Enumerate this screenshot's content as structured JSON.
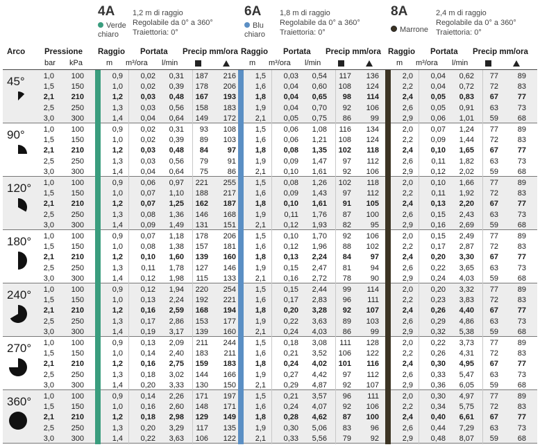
{
  "nozzles": [
    {
      "code": "4A",
      "color_name_1": "Verde",
      "color_name_2": "chiaro",
      "color": "#3a9d7e",
      "specs": [
        "1,2 m di raggio",
        "Regolabile da 0° a 360°",
        "Traiettoria: 0°"
      ]
    },
    {
      "code": "6A",
      "color_name_1": "Blu",
      "color_name_2": "chiaro",
      "color": "#5b8fc4",
      "specs": [
        "1,8 m di raggio",
        "Regolabile da 0° a 360°",
        "Traiettoria: 0°"
      ]
    },
    {
      "code": "8A",
      "color_name_1": "Marrone",
      "color_name_2": "",
      "color": "#3c3424",
      "specs": [
        "2,4 m di raggio",
        "Regolabile da 0° a 360°",
        "Traiettoria: 0°"
      ]
    }
  ],
  "headers": {
    "arco": "Arco",
    "pressione": "Pressione",
    "bar": "bar",
    "kpa": "kPa",
    "raggio": "Raggio",
    "portata": "Portata",
    "precip": "Precip mm/ora",
    "m": "m",
    "m3ora": "m³/ora",
    "lmin": "l/min"
  },
  "arcs": [
    {
      "label": "45°",
      "rows": [
        [
          "1,0",
          "100",
          "0,9",
          "0,02",
          "0,31",
          "187",
          "216",
          "1,5",
          "0,03",
          "0,54",
          "117",
          "136",
          "2,0",
          "0,04",
          "0,62",
          "77",
          "89"
        ],
        [
          "1,5",
          "150",
          "1,0",
          "0,02",
          "0,39",
          "178",
          "206",
          "1,6",
          "0,04",
          "0,60",
          "108",
          "124",
          "2,2",
          "0,04",
          "0,72",
          "72",
          "83"
        ],
        [
          "2,1",
          "210",
          "1,2",
          "0,03",
          "0,48",
          "167",
          "193",
          "1,8",
          "0,04",
          "0,65",
          "98",
          "114",
          "2,4",
          "0,05",
          "0,83",
          "67",
          "77"
        ],
        [
          "2,5",
          "250",
          "1,3",
          "0,03",
          "0,56",
          "158",
          "183",
          "1,9",
          "0,04",
          "0,70",
          "92",
          "106",
          "2,6",
          "0,05",
          "0,91",
          "63",
          "73"
        ],
        [
          "3,0",
          "300",
          "1,4",
          "0,04",
          "0,64",
          "149",
          "172",
          "2,1",
          "0,05",
          "0,75",
          "86",
          "99",
          "2,9",
          "0,06",
          "1,01",
          "59",
          "68"
        ]
      ]
    },
    {
      "label": "90°",
      "rows": [
        [
          "1,0",
          "100",
          "0,9",
          "0,02",
          "0,31",
          "93",
          "108",
          "1,5",
          "0,06",
          "1,08",
          "116",
          "134",
          "2,0",
          "0,07",
          "1,24",
          "77",
          "89"
        ],
        [
          "1,5",
          "150",
          "1,0",
          "0,02",
          "0,39",
          "89",
          "103",
          "1,6",
          "0,06",
          "1,21",
          "108",
          "124",
          "2,2",
          "0,09",
          "1,44",
          "72",
          "83"
        ],
        [
          "2,1",
          "210",
          "1,2",
          "0,03",
          "0,48",
          "84",
          "97",
          "1,8",
          "0,08",
          "1,35",
          "102",
          "118",
          "2,4",
          "0,10",
          "1,65",
          "67",
          "77"
        ],
        [
          "2,5",
          "250",
          "1,3",
          "0,03",
          "0,56",
          "79",
          "91",
          "1,9",
          "0,09",
          "1,47",
          "97",
          "112",
          "2,6",
          "0,11",
          "1,82",
          "63",
          "73"
        ],
        [
          "3,0",
          "300",
          "1,4",
          "0,04",
          "0,64",
          "75",
          "86",
          "2,1",
          "0,10",
          "1,61",
          "92",
          "106",
          "2,9",
          "0,12",
          "2,02",
          "59",
          "68"
        ]
      ]
    },
    {
      "label": "120°",
      "rows": [
        [
          "1,0",
          "100",
          "0,9",
          "0,06",
          "0,97",
          "221",
          "255",
          "1,5",
          "0,08",
          "1,26",
          "102",
          "118",
          "2,0",
          "0,10",
          "1,66",
          "77",
          "89"
        ],
        [
          "1,5",
          "150",
          "1,0",
          "0,07",
          "1,10",
          "188",
          "217",
          "1,6",
          "0,09",
          "1,43",
          "97",
          "112",
          "2,2",
          "0,11",
          "1,92",
          "72",
          "83"
        ],
        [
          "2,1",
          "210",
          "1,2",
          "0,07",
          "1,25",
          "162",
          "187",
          "1,8",
          "0,10",
          "1,61",
          "91",
          "105",
          "2,4",
          "0,13",
          "2,20",
          "67",
          "77"
        ],
        [
          "2,5",
          "250",
          "1,3",
          "0,08",
          "1,36",
          "146",
          "168",
          "1,9",
          "0,11",
          "1,76",
          "87",
          "100",
          "2,6",
          "0,15",
          "2,43",
          "63",
          "73"
        ],
        [
          "3,0",
          "300",
          "1,4",
          "0,09",
          "1,49",
          "131",
          "151",
          "2,1",
          "0,12",
          "1,93",
          "82",
          "95",
          "2,9",
          "0,16",
          "2,69",
          "59",
          "68"
        ]
      ]
    },
    {
      "label": "180°",
      "rows": [
        [
          "1,0",
          "100",
          "0,9",
          "0,07",
          "1,18",
          "178",
          "206",
          "1,5",
          "0,10",
          "1,70",
          "92",
          "106",
          "2,0",
          "0,15",
          "2,49",
          "77",
          "89"
        ],
        [
          "1,5",
          "150",
          "1,0",
          "0,08",
          "1,38",
          "157",
          "181",
          "1,6",
          "0,12",
          "1,96",
          "88",
          "102",
          "2,2",
          "0,17",
          "2,87",
          "72",
          "83"
        ],
        [
          "2,1",
          "210",
          "1,2",
          "0,10",
          "1,60",
          "139",
          "160",
          "1,8",
          "0,13",
          "2,24",
          "84",
          "97",
          "2,4",
          "0,20",
          "3,30",
          "67",
          "77"
        ],
        [
          "2,5",
          "250",
          "1,3",
          "0,11",
          "1,78",
          "127",
          "146",
          "1,9",
          "0,15",
          "2,47",
          "81",
          "94",
          "2,6",
          "0,22",
          "3,65",
          "63",
          "73"
        ],
        [
          "3,0",
          "300",
          "1,4",
          "0,12",
          "1,98",
          "115",
          "133",
          "2,1",
          "0,16",
          "2,72",
          "78",
          "90",
          "2,9",
          "0,24",
          "4,03",
          "59",
          "68"
        ]
      ]
    },
    {
      "label": "240°",
      "rows": [
        [
          "1,0",
          "100",
          "0,9",
          "0,12",
          "1,94",
          "220",
          "254",
          "1,5",
          "0,15",
          "2,44",
          "99",
          "114",
          "2,0",
          "0,20",
          "3,32",
          "77",
          "89"
        ],
        [
          "1,5",
          "150",
          "1,0",
          "0,13",
          "2,24",
          "192",
          "221",
          "1,6",
          "0,17",
          "2,83",
          "96",
          "111",
          "2,2",
          "0,23",
          "3,83",
          "72",
          "83"
        ],
        [
          "2,1",
          "210",
          "1,2",
          "0,16",
          "2,59",
          "168",
          "194",
          "1,8",
          "0,20",
          "3,28",
          "92",
          "107",
          "2,4",
          "0,26",
          "4,40",
          "67",
          "77"
        ],
        [
          "2,5",
          "250",
          "1,3",
          "0,17",
          "2,86",
          "153",
          "177",
          "1,9",
          "0,22",
          "3,63",
          "89",
          "103",
          "2,6",
          "0,29",
          "4,86",
          "63",
          "73"
        ],
        [
          "3,0",
          "300",
          "1,4",
          "0,19",
          "3,17",
          "139",
          "160",
          "2,1",
          "0,24",
          "4,03",
          "86",
          "99",
          "2,9",
          "0,32",
          "5,38",
          "59",
          "68"
        ]
      ]
    },
    {
      "label": "270°",
      "rows": [
        [
          "1,0",
          "100",
          "0,9",
          "0,13",
          "2,09",
          "211",
          "244",
          "1,5",
          "0,18",
          "3,08",
          "111",
          "128",
          "2,0",
          "0,22",
          "3,73",
          "77",
          "89"
        ],
        [
          "1,5",
          "150",
          "1,0",
          "0,14",
          "2,40",
          "183",
          "211",
          "1,6",
          "0,21",
          "3,52",
          "106",
          "122",
          "2,2",
          "0,26",
          "4,31",
          "72",
          "83"
        ],
        [
          "2,1",
          "210",
          "1,2",
          "0,16",
          "2,75",
          "159",
          "183",
          "1,8",
          "0,24",
          "4,02",
          "101",
          "116",
          "2,4",
          "0,30",
          "4,95",
          "67",
          "77"
        ],
        [
          "2,5",
          "250",
          "1,3",
          "0,18",
          "3,02",
          "144",
          "166",
          "1,9",
          "0,27",
          "4,42",
          "97",
          "112",
          "2,6",
          "0,33",
          "5,47",
          "63",
          "73"
        ],
        [
          "3,0",
          "300",
          "1,4",
          "0,20",
          "3,33",
          "130",
          "150",
          "2,1",
          "0,29",
          "4,87",
          "92",
          "107",
          "2,9",
          "0,36",
          "6,05",
          "59",
          "68"
        ]
      ]
    },
    {
      "label": "360°",
      "rows": [
        [
          "1,0",
          "100",
          "0,9",
          "0,14",
          "2,26",
          "171",
          "197",
          "1,5",
          "0,21",
          "3,57",
          "96",
          "111",
          "2,0",
          "0,30",
          "4,97",
          "77",
          "89"
        ],
        [
          "1,5",
          "150",
          "1,0",
          "0,16",
          "2,60",
          "148",
          "171",
          "1,6",
          "0,24",
          "4,07",
          "92",
          "106",
          "2,2",
          "0,34",
          "5,75",
          "72",
          "83"
        ],
        [
          "2,1",
          "210",
          "1,2",
          "0,18",
          "2,98",
          "129",
          "149",
          "1,8",
          "0,28",
          "4,62",
          "87",
          "100",
          "2,4",
          "0,40",
          "6,61",
          "67",
          "77"
        ],
        [
          "2,5",
          "250",
          "1,3",
          "0,20",
          "3,29",
          "117",
          "135",
          "1,9",
          "0,30",
          "5,06",
          "83",
          "96",
          "2,6",
          "0,44",
          "7,29",
          "63",
          "73"
        ],
        [
          "3,0",
          "300",
          "1,4",
          "0,22",
          "3,63",
          "106",
          "122",
          "2,1",
          "0,33",
          "5,56",
          "79",
          "92",
          "2,9",
          "0,48",
          "8,07",
          "59",
          "68"
        ]
      ]
    }
  ],
  "arc_icons": [
    "sector-45-icon",
    "sector-90-icon",
    "sector-120-icon",
    "sector-180-icon",
    "sector-240-icon",
    "sector-270-icon",
    "full-circle-icon"
  ],
  "arc_degrees": [
    45,
    90,
    120,
    180,
    240,
    270,
    360
  ]
}
